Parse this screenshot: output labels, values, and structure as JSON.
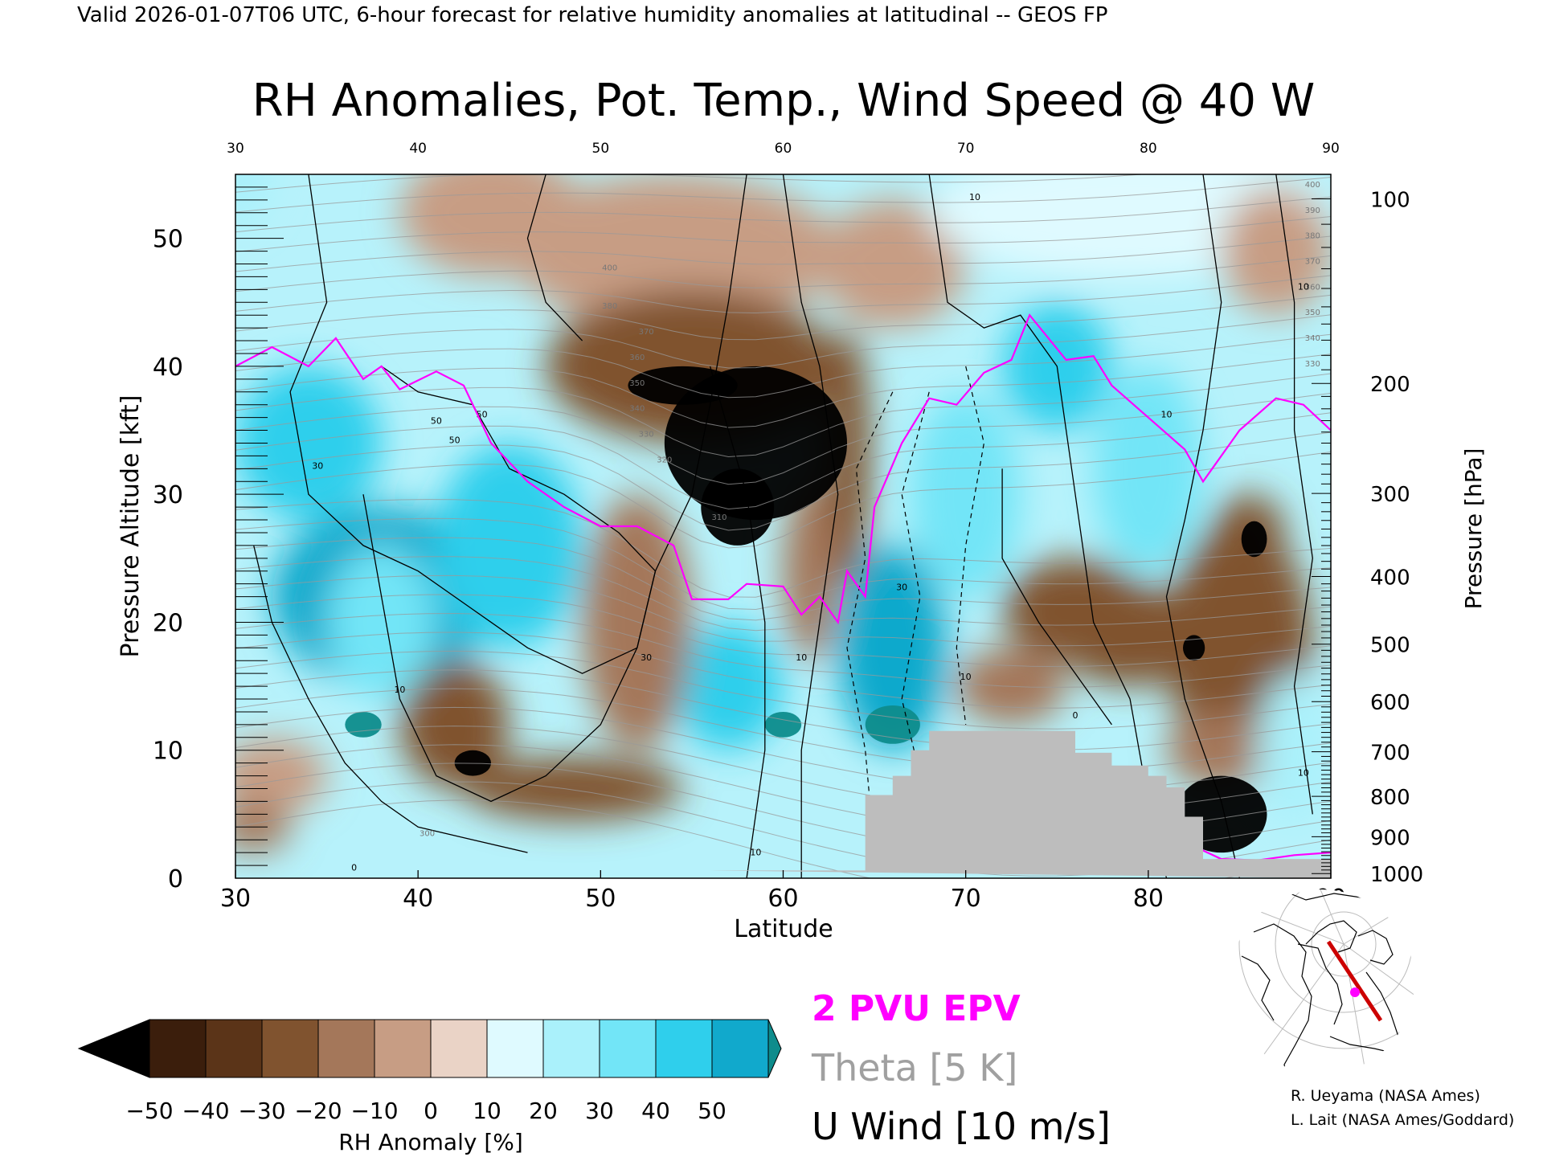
{
  "header": {
    "valid_line": "Valid 2026-01-07T06 UTC, 6-hour forecast for relative humidity anomalies at latitudinal -- GEOS FP"
  },
  "chart_data": {
    "type": "heatmap",
    "title": "RH Anomalies, Pot. Temp., Wind Speed @ 40 W",
    "xlabel": "Latitude",
    "ylabel": "Pressure Altitude [kft]",
    "ylabel_right": "Pressure [hPa]",
    "xlim": [
      30,
      90
    ],
    "ylim": [
      0,
      55
    ],
    "x_ticks": [
      "30",
      "40",
      "50",
      "60",
      "70",
      "80",
      "90"
    ],
    "y_ticks": [
      {
        "value": 0,
        "label": "0"
      },
      {
        "value": 10,
        "label": "10"
      },
      {
        "value": 20,
        "label": "20"
      },
      {
        "value": 30,
        "label": "30"
      },
      {
        "value": 40,
        "label": "40"
      },
      {
        "value": 50,
        "label": "50"
      }
    ],
    "pressure_ticks": [
      {
        "value": 100,
        "label": "100"
      },
      {
        "value": 200,
        "label": "200"
      },
      {
        "value": 300,
        "label": "300"
      },
      {
        "value": 400,
        "label": "400"
      },
      {
        "value": 500,
        "label": "500"
      },
      {
        "value": 600,
        "label": "600"
      },
      {
        "value": 700,
        "label": "700"
      },
      {
        "value": 800,
        "label": "800"
      },
      {
        "value": 900,
        "label": "900"
      },
      {
        "value": 1000,
        "label": "1000"
      }
    ],
    "colorbar": {
      "label": "RH Anomaly [%]",
      "ticks": [
        "-50",
        "-40",
        "-30",
        "-20",
        "-10",
        "0",
        "10",
        "20",
        "30",
        "40",
        "50"
      ],
      "colors": [
        "#3b1e0c",
        "#5b3418",
        "#80532f",
        "#a4775a",
        "#c79d84",
        "#ead3c6",
        "#dffaff",
        "#aaf1fb",
        "#72e5f7",
        "#2fcfec",
        "#11a9cc"
      ],
      "low_color": "#000000",
      "high_color": "#0e8c8c"
    },
    "legend": [
      {
        "label": "2 PVU EPV",
        "color": "#ff00ff"
      },
      {
        "label": "Theta [5 K]",
        "color": "#a0a0a0"
      },
      {
        "label": "U Wind [10 m/s]",
        "color": "#000000"
      }
    ],
    "epv_2pvu_line": [
      [
        30,
        40
      ],
      [
        32,
        41.5
      ],
      [
        34,
        40
      ],
      [
        35.5,
        42.2
      ],
      [
        37,
        39
      ],
      [
        38,
        40
      ],
      [
        39,
        38.2
      ],
      [
        41,
        39.6
      ],
      [
        42.5,
        38.5
      ],
      [
        44,
        34
      ],
      [
        46,
        31
      ],
      [
        48,
        29
      ],
      [
        50,
        27.5
      ],
      [
        52,
        27.5
      ],
      [
        54,
        26
      ],
      [
        55,
        21.8
      ],
      [
        57,
        21.8
      ],
      [
        58,
        23
      ],
      [
        60,
        22.8
      ],
      [
        61,
        20.6
      ],
      [
        62,
        22
      ],
      [
        63,
        20
      ],
      [
        63.5,
        24
      ],
      [
        64.5,
        22
      ],
      [
        65,
        29
      ],
      [
        66.5,
        34
      ],
      [
        68,
        37.5
      ],
      [
        69.5,
        37
      ],
      [
        71,
        39.5
      ],
      [
        72.5,
        40.5
      ],
      [
        73.5,
        44
      ],
      [
        75.5,
        40.5
      ],
      [
        77,
        40.8
      ],
      [
        78,
        38.5
      ],
      [
        80,
        36
      ],
      [
        82,
        33.5
      ],
      [
        83,
        31
      ],
      [
        85,
        35
      ],
      [
        87,
        37.5
      ],
      [
        88.5,
        37
      ],
      [
        90,
        35
      ]
    ],
    "epv_2pvu_lower_line": [
      [
        81,
        3
      ],
      [
        82.5,
        2.5
      ],
      [
        84,
        1.5
      ],
      [
        86,
        1.4
      ],
      [
        88,
        1.8
      ],
      [
        90,
        2
      ]
    ],
    "surface_mask_kft": [
      [
        56,
        0.6
      ],
      [
        64.5,
        0.6
      ],
      [
        64.5,
        6.5
      ],
      [
        66,
        6.5
      ],
      [
        66,
        8
      ],
      [
        67,
        8
      ],
      [
        67,
        10
      ],
      [
        68,
        10
      ],
      [
        68,
        11.5
      ],
      [
        76,
        11.5
      ],
      [
        76,
        9.8
      ],
      [
        78,
        9.8
      ],
      [
        78,
        8.8
      ],
      [
        80,
        8.8
      ],
      [
        80,
        8
      ],
      [
        81,
        8
      ],
      [
        81,
        7.1
      ],
      [
        82,
        7.1
      ],
      [
        82,
        4.8
      ],
      [
        83,
        4.8
      ],
      [
        83,
        1.5
      ],
      [
        90,
        1.5
      ],
      [
        90,
        0
      ]
    ],
    "theta_contour_labels": [
      {
        "lat": 50.5,
        "alt": 47.5,
        "label": "400"
      },
      {
        "lat": 50.5,
        "alt": 44.5,
        "label": "380"
      },
      {
        "lat": 52.5,
        "alt": 42.5,
        "label": "370"
      },
      {
        "lat": 52,
        "alt": 40.5,
        "label": "360"
      },
      {
        "lat": 52,
        "alt": 38.5,
        "label": "350"
      },
      {
        "lat": 52,
        "alt": 36.5,
        "label": "340"
      },
      {
        "lat": 52.5,
        "alt": 34.5,
        "label": "330"
      },
      {
        "lat": 53.5,
        "alt": 32.5,
        "label": "320"
      },
      {
        "lat": 56.5,
        "alt": 28,
        "label": "310"
      },
      {
        "lat": 89,
        "alt": 54,
        "label": "400"
      },
      {
        "lat": 89,
        "alt": 52,
        "label": "390"
      },
      {
        "lat": 89,
        "alt": 50,
        "label": "380"
      },
      {
        "lat": 89,
        "alt": 48,
        "label": "370"
      },
      {
        "lat": 89,
        "alt": 46,
        "label": "360"
      },
      {
        "lat": 89,
        "alt": 44,
        "label": "350"
      },
      {
        "lat": 89,
        "alt": 42,
        "label": "340"
      },
      {
        "lat": 89,
        "alt": 40,
        "label": "330"
      },
      {
        "lat": 40.5,
        "alt": 3.3,
        "label": "300"
      }
    ],
    "wind_contour_labels": [
      {
        "lat": 39,
        "alt": 14.5,
        "label": "10"
      },
      {
        "lat": 42,
        "alt": 34,
        "label": "50"
      },
      {
        "lat": 43.5,
        "alt": 36,
        "label": "50"
      },
      {
        "lat": 41,
        "alt": 35.5,
        "label": "50"
      },
      {
        "lat": 34.5,
        "alt": 32,
        "label": "30"
      },
      {
        "lat": 52.5,
        "alt": 17,
        "label": "30"
      },
      {
        "lat": 61,
        "alt": 17,
        "label": "10"
      },
      {
        "lat": 66.5,
        "alt": 22.5,
        "label": "30"
      },
      {
        "lat": 70,
        "alt": 15.5,
        "label": "10"
      },
      {
        "lat": 76,
        "alt": 12.5,
        "label": "0"
      },
      {
        "lat": 81,
        "alt": 36,
        "label": "10"
      },
      {
        "lat": 88.5,
        "alt": 46,
        "label": "10"
      },
      {
        "lat": 88.5,
        "alt": 8,
        "label": "10"
      },
      {
        "lat": 58.5,
        "alt": 1.8,
        "label": "10"
      },
      {
        "lat": 70.5,
        "alt": 53,
        "label": "10"
      },
      {
        "lat": 36.5,
        "alt": 0.6,
        "label": "0"
      }
    ],
    "rh_anomaly_features": [
      {
        "lat": 30,
        "alt": 55,
        "rx": 2,
        "ry": 4,
        "value": 15
      },
      {
        "lat": 44,
        "alt": 52,
        "rx": 5,
        "ry": 5,
        "value": -15
      },
      {
        "lat": 54,
        "alt": 49,
        "rx": 9,
        "ry": 6,
        "value": -12
      },
      {
        "lat": 66,
        "alt": 48,
        "rx": 4,
        "ry": 5,
        "value": -12
      },
      {
        "lat": 79,
        "alt": 52,
        "rx": 11,
        "ry": 5,
        "value": 12
      },
      {
        "lat": 87,
        "alt": 49,
        "rx": 3,
        "ry": 5,
        "value": -8
      },
      {
        "lat": 55,
        "alt": 40,
        "rx": 8,
        "ry": 6,
        "value": -35
      },
      {
        "lat": 58.5,
        "alt": 34,
        "rx": 5,
        "ry": 6,
        "value": -55
      },
      {
        "lat": 54.5,
        "alt": 38.5,
        "rx": 3,
        "ry": 1.5,
        "value": -55
      },
      {
        "lat": 57.5,
        "alt": 29,
        "rx": 2,
        "ry": 3,
        "value": -55
      },
      {
        "lat": 63.5,
        "alt": 33,
        "rx": 1.3,
        "ry": 10,
        "value": -30
      },
      {
        "lat": 61.5,
        "alt": 24,
        "rx": 1.5,
        "ry": 7,
        "value": -25
      },
      {
        "lat": 34,
        "alt": 34,
        "rx": 4,
        "ry": 6,
        "value": 35
      },
      {
        "lat": 38,
        "alt": 22,
        "rx": 6,
        "ry": 7,
        "value": 45
      },
      {
        "lat": 45,
        "alt": 26,
        "rx": 4,
        "ry": 8,
        "value": 35
      },
      {
        "lat": 57,
        "alt": 15,
        "rx": 3,
        "ry": 5,
        "value": 40
      },
      {
        "lat": 66,
        "alt": 18,
        "rx": 3,
        "ry": 8,
        "value": 45
      },
      {
        "lat": 70,
        "alt": 30,
        "rx": 3,
        "ry": 8,
        "value": 30
      },
      {
        "lat": 75,
        "alt": 40,
        "rx": 3,
        "ry": 5,
        "value": 35
      },
      {
        "lat": 80,
        "alt": 32,
        "rx": 3,
        "ry": 8,
        "value": 30
      },
      {
        "lat": 86,
        "alt": 22,
        "rx": 2,
        "ry": 6,
        "value": 25
      },
      {
        "lat": 42,
        "alt": 12,
        "rx": 3,
        "ry": 5,
        "value": -30
      },
      {
        "lat": 43,
        "alt": 9,
        "rx": 1,
        "ry": 1,
        "value": -55
      },
      {
        "lat": 52,
        "alt": 20,
        "rx": 3,
        "ry": 10,
        "value": -25
      },
      {
        "lat": 48.5,
        "alt": 7,
        "rx": 6,
        "ry": 2.5,
        "value": -30
      },
      {
        "lat": 38,
        "alt": 20,
        "rx": 3,
        "ry": 6,
        "value": 25
      },
      {
        "lat": 32,
        "alt": 8,
        "rx": 3,
        "ry": 3,
        "value": -15
      },
      {
        "lat": 31,
        "alt": 4,
        "rx": 2,
        "ry": 2,
        "value": -20
      },
      {
        "lat": 37,
        "alt": 12,
        "rx": 1,
        "ry": 1,
        "value": 55
      },
      {
        "lat": 76,
        "alt": 21,
        "rx": 4,
        "ry": 4,
        "value": -35
      },
      {
        "lat": 79,
        "alt": 19,
        "rx": 4,
        "ry": 4,
        "value": -30
      },
      {
        "lat": 85,
        "alt": 18,
        "rx": 4,
        "ry": 10,
        "value": -30
      },
      {
        "lat": 85.5,
        "alt": 27,
        "rx": 2,
        "ry": 3,
        "value": -35
      },
      {
        "lat": 85.8,
        "alt": 26.5,
        "rx": 0.7,
        "ry": 1.4,
        "value": -55
      },
      {
        "lat": 82.5,
        "alt": 18,
        "rx": 0.6,
        "ry": 1,
        "value": -55
      },
      {
        "lat": 84,
        "alt": 5,
        "rx": 2.5,
        "ry": 3,
        "value": -55
      },
      {
        "lat": 72.5,
        "alt": 15,
        "rx": 3,
        "ry": 3,
        "value": -20
      },
      {
        "lat": 84,
        "alt": 10,
        "rx": 3,
        "ry": 3,
        "value": -25
      },
      {
        "lat": 66,
        "alt": 12,
        "rx": 1.5,
        "ry": 1.5,
        "value": 55
      },
      {
        "lat": 60,
        "alt": 12,
        "rx": 1,
        "ry": 1,
        "value": 55
      },
      {
        "lat": 88,
        "alt": 10,
        "rx": 2,
        "ry": 6,
        "value": 15
      }
    ],
    "inset_map": {
      "marker_color": "#ff00ff",
      "track_color": "#cc0000"
    }
  },
  "credits": {
    "line1": "R. Ueyama (NASA Ames)",
    "line2": "L. Lait (NASA Ames/Goddard)"
  }
}
